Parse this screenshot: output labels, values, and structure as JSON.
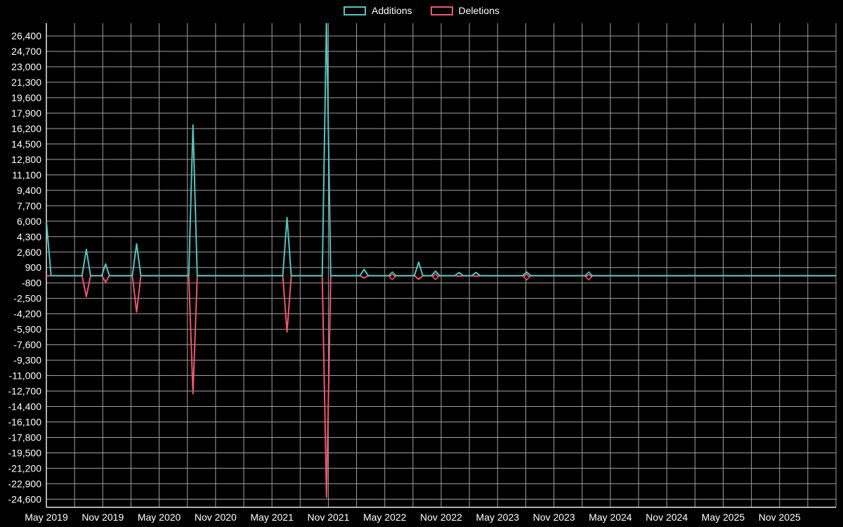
{
  "legend": {
    "items": [
      {
        "label": "Additions",
        "color": "#56c3bd"
      },
      {
        "label": "Deletions",
        "color": "#ef5670"
      }
    ]
  },
  "colors": {
    "background": "#000000",
    "grid": "#a0a0a0",
    "axis": "#e8e8e8",
    "text": "#ffffff"
  },
  "chart_data": {
    "type": "line",
    "title": "",
    "xlabel": "",
    "ylabel": "",
    "legend_position": "top-center",
    "grid": true,
    "baseline": 0,
    "x_axis": {
      "unit": "months-since-may-2019",
      "range_months": [
        0,
        84
      ],
      "grid_step_months": 3,
      "tick_month_offsets": [
        0,
        6,
        12,
        18,
        24,
        30,
        36,
        42,
        48,
        54,
        60,
        66,
        72,
        78
      ],
      "tick_labels": [
        "May 2019",
        "Nov 2019",
        "May 2020",
        "Nov 2020",
        "May 2021",
        "Nov 2021",
        "May 2022",
        "Nov 2022",
        "May 2023",
        "Nov 2023",
        "May 2024",
        "Nov 2024",
        "May 2025",
        "Nov 2025"
      ]
    },
    "y_axis": {
      "range": [
        -25500,
        27800
      ],
      "tick_values": [
        26400,
        24700,
        23000,
        21300,
        19600,
        17900,
        16200,
        14500,
        12800,
        11100,
        9400,
        7700,
        6000,
        4300,
        2600,
        900,
        -800,
        -2500,
        -4200,
        -5900,
        -7600,
        -9300,
        -11000,
        -12700,
        -14400,
        -16100,
        -17800,
        -19500,
        -21200,
        -22900,
        -24600
      ]
    },
    "series": [
      {
        "name": "Additions",
        "color": "#56c3bd",
        "points": [
          [
            0,
            6000
          ],
          [
            0.5,
            0
          ],
          [
            3.8,
            0
          ],
          [
            4.25,
            2900
          ],
          [
            4.7,
            0
          ],
          [
            5.9,
            0
          ],
          [
            6.3,
            1300
          ],
          [
            6.7,
            0
          ],
          [
            9.15,
            0
          ],
          [
            9.6,
            3500
          ],
          [
            10.05,
            0
          ],
          [
            15.15,
            0
          ],
          [
            15.6,
            16600
          ],
          [
            16.05,
            0
          ],
          [
            25.15,
            0
          ],
          [
            25.6,
            6400
          ],
          [
            26.05,
            0
          ],
          [
            29.35,
            0
          ],
          [
            29.8,
            28500
          ],
          [
            30.25,
            0
          ],
          [
            33.35,
            0
          ],
          [
            33.8,
            700
          ],
          [
            34.25,
            0
          ],
          [
            36.5,
            0
          ],
          [
            36.8,
            100
          ],
          [
            37.1,
            0
          ],
          [
            39.15,
            0
          ],
          [
            39.6,
            1500
          ],
          [
            40.05,
            0
          ],
          [
            40.95,
            0
          ],
          [
            41.4,
            500
          ],
          [
            41.85,
            0
          ],
          [
            43.45,
            0
          ],
          [
            43.9,
            350
          ],
          [
            44.35,
            0
          ],
          [
            45.25,
            0
          ],
          [
            45.7,
            350
          ],
          [
            46.15,
            0
          ],
          [
            50.65,
            0
          ],
          [
            51.1,
            400
          ],
          [
            51.55,
            0
          ],
          [
            57.25,
            0
          ],
          [
            57.7,
            100
          ],
          [
            58.15,
            0
          ],
          [
            84,
            0
          ]
        ],
        "marker_points": [
          [
            36.8,
            100
          ],
          [
            57.7,
            100
          ]
        ]
      },
      {
        "name": "Deletions",
        "color": "#ef5670",
        "points": [
          [
            0,
            0
          ],
          [
            3.8,
            0
          ],
          [
            4.25,
            -2300
          ],
          [
            4.7,
            0
          ],
          [
            5.9,
            0
          ],
          [
            6.3,
            -700
          ],
          [
            6.7,
            0
          ],
          [
            9.15,
            0
          ],
          [
            9.6,
            -4000
          ],
          [
            10.05,
            0
          ],
          [
            15.15,
            0
          ],
          [
            15.6,
            -13000
          ],
          [
            16.05,
            0
          ],
          [
            25.15,
            0
          ],
          [
            25.6,
            -6200
          ],
          [
            26.05,
            0
          ],
          [
            29.35,
            0
          ],
          [
            29.8,
            -24400
          ],
          [
            30.25,
            0
          ],
          [
            33.35,
            0
          ],
          [
            33.8,
            -250
          ],
          [
            34.25,
            0
          ],
          [
            36.5,
            0
          ],
          [
            36.8,
            -120
          ],
          [
            37.1,
            0
          ],
          [
            39.15,
            0
          ],
          [
            39.6,
            -400
          ],
          [
            40.05,
            0
          ],
          [
            40.95,
            0
          ],
          [
            41.4,
            -120
          ],
          [
            41.85,
            0
          ],
          [
            43.45,
            0
          ],
          [
            43.9,
            -60
          ],
          [
            44.35,
            0
          ],
          [
            45.25,
            0
          ],
          [
            45.7,
            -60
          ],
          [
            46.15,
            0
          ],
          [
            50.65,
            0
          ],
          [
            51.1,
            -150
          ],
          [
            51.55,
            0
          ],
          [
            57.25,
            0
          ],
          [
            57.7,
            -150
          ],
          [
            58.15,
            0
          ],
          [
            84,
            0
          ]
        ],
        "marker_points": [
          [
            36.8,
            -120
          ],
          [
            41.4,
            -120
          ],
          [
            51.1,
            -150
          ],
          [
            57.7,
            -150
          ]
        ]
      }
    ]
  }
}
